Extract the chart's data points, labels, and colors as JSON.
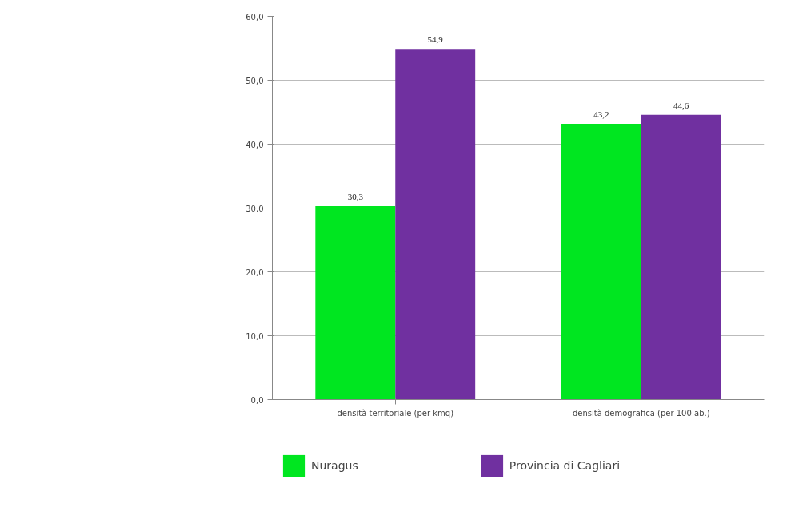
{
  "chart_data": {
    "type": "bar",
    "categories": [
      "densità territoriale (per kmq)",
      "densità demografica (per 100 ab.)"
    ],
    "series": [
      {
        "name": "Nuragus",
        "color": "#00e620",
        "values": [
          30.3,
          43.2
        ],
        "value_labels": [
          "30,3",
          "43,2"
        ]
      },
      {
        "name": "Provincia di Cagliari",
        "color": "#7030a0",
        "values": [
          54.9,
          44.6
        ],
        "value_labels": [
          "54,9",
          "44,6"
        ]
      }
    ],
    "ylim": [
      0,
      60
    ],
    "yticks": [
      {
        "value": 0,
        "label": "0,0"
      },
      {
        "value": 10,
        "label": "10,0"
      },
      {
        "value": 20,
        "label": "20,0"
      },
      {
        "value": 30,
        "label": "30,0"
      },
      {
        "value": 40,
        "label": "40,0"
      },
      {
        "value": 50,
        "label": "50,0"
      },
      {
        "value": 60,
        "label": "60,0"
      }
    ],
    "grid": "y",
    "legend": "bottom left"
  }
}
